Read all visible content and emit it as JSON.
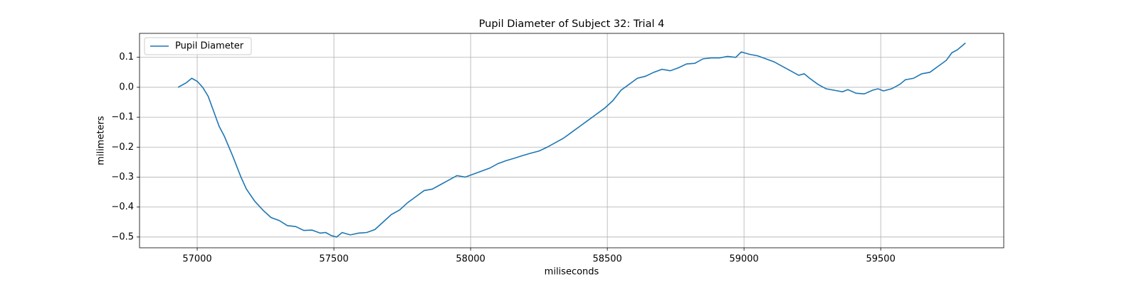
{
  "chart_data": {
    "type": "line",
    "title": "Pupil Diameter of Subject 32: Trial 4",
    "x_label": "miliseconds",
    "y_label": "milimeters",
    "x": [
      56930,
      56960,
      56980,
      57000,
      57020,
      57040,
      57060,
      57080,
      57100,
      57130,
      57160,
      57180,
      57210,
      57240,
      57270,
      57300,
      57330,
      57360,
      57390,
      57420,
      57450,
      57470,
      57490,
      57510,
      57530,
      57560,
      57590,
      57620,
      57650,
      57680,
      57710,
      57740,
      57770,
      57800,
      57830,
      57860,
      57890,
      57920,
      57950,
      57980,
      58010,
      58040,
      58070,
      58100,
      58130,
      58160,
      58190,
      58220,
      58250,
      58280,
      58310,
      58340,
      58370,
      58400,
      58430,
      58460,
      58490,
      58520,
      58550,
      58580,
      58610,
      58640,
      58670,
      58700,
      58730,
      58760,
      58790,
      58820,
      58850,
      58880,
      58910,
      58940,
      58970,
      58990,
      59020,
      59050,
      59080,
      59110,
      59140,
      59170,
      59200,
      59220,
      59240,
      59270,
      59300,
      59330,
      59360,
      59380,
      59410,
      59440,
      59470,
      59490,
      59510,
      59540,
      59570,
      59590,
      59620,
      59650,
      59680,
      59710,
      59740,
      59760,
      59780,
      59800,
      59810
    ],
    "series": [
      {
        "name": "Pupil Diameter",
        "color": "#1f77b4",
        "values": [
          0.0,
          0.015,
          0.03,
          0.02,
          0.0,
          -0.03,
          -0.08,
          -0.13,
          -0.165,
          -0.23,
          -0.3,
          -0.34,
          -0.38,
          -0.41,
          -0.435,
          -0.445,
          -0.462,
          -0.465,
          -0.478,
          -0.477,
          -0.487,
          -0.485,
          -0.495,
          -0.5,
          -0.485,
          -0.493,
          -0.487,
          -0.485,
          -0.475,
          -0.45,
          -0.425,
          -0.41,
          -0.385,
          -0.365,
          -0.345,
          -0.34,
          -0.325,
          -0.31,
          -0.295,
          -0.3,
          -0.29,
          -0.28,
          -0.27,
          -0.255,
          -0.245,
          -0.237,
          -0.228,
          -0.22,
          -0.213,
          -0.2,
          -0.185,
          -0.17,
          -0.15,
          -0.13,
          -0.11,
          -0.09,
          -0.07,
          -0.045,
          -0.01,
          0.01,
          0.03,
          0.037,
          0.05,
          0.06,
          0.055,
          0.065,
          0.078,
          0.08,
          0.095,
          0.098,
          0.098,
          0.103,
          0.1,
          0.118,
          0.11,
          0.105,
          0.095,
          0.085,
          0.07,
          0.055,
          0.04,
          0.045,
          0.03,
          0.01,
          -0.005,
          -0.01,
          -0.015,
          -0.008,
          -0.02,
          -0.022,
          -0.01,
          -0.005,
          -0.012,
          -0.005,
          0.01,
          0.025,
          0.03,
          0.045,
          0.05,
          0.07,
          0.09,
          0.115,
          0.125,
          0.14,
          0.148
        ]
      }
    ],
    "xlim": [
      56789,
      59950
    ],
    "ylim": [
      -0.536,
      0.18
    ],
    "xticks": [
      57000,
      57500,
      58000,
      58500,
      59000,
      59500
    ],
    "yticks": [
      0.1,
      {
        "value": 0.0,
        "label": "0.0"
      },
      {
        "value": -0.1,
        "label": "−0.1"
      },
      {
        "value": -0.2,
        "label": "−0.2"
      },
      {
        "value": -0.3,
        "label": "−0.3"
      },
      {
        "value": -0.4,
        "label": "−0.4"
      },
      {
        "value": -0.5,
        "label": "−0.5"
      }
    ],
    "grid": true,
    "legend": "upper left"
  }
}
